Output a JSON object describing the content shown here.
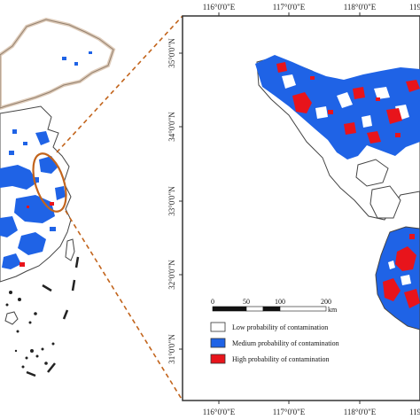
{
  "colors": {
    "low": "#ffffff",
    "medium": "#1f63e6",
    "high": "#e8141b",
    "callout": "#c2641c",
    "boundary": "#333333"
  },
  "top_ticks": [
    "116°0'0\"E",
    "117°0'0\"E",
    "118°0'0\"E",
    "119°"
  ],
  "bottom_ticks": [
    "116°0'0\"E",
    "117°0'0\"E",
    "118°0'0\"E",
    "119°"
  ],
  "left_ticks": [
    "35°0'0\"N",
    "34°0'0\"N",
    "33°0'0\"N",
    "32°0'0\"N",
    "31°0'0\"N"
  ],
  "scale": {
    "labels": [
      "0",
      "50",
      "100",
      "200"
    ],
    "unit": "km"
  },
  "legend": {
    "items": [
      {
        "label": "Low probability of contamination",
        "color": "#ffffff"
      },
      {
        "label": "Medium probability of contamination",
        "color": "#1f63e6"
      },
      {
        "label": "High probability of contamination",
        "color": "#e8141b"
      }
    ]
  }
}
